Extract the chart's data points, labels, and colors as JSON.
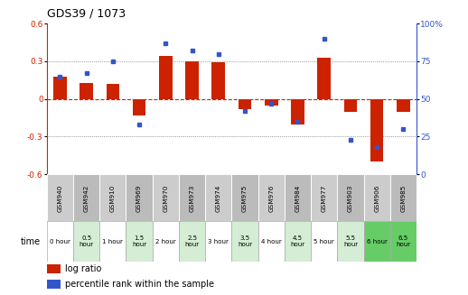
{
  "title": "GDS39 / 1073",
  "samples": [
    "GSM940",
    "GSM942",
    "GSM910",
    "GSM969",
    "GSM970",
    "GSM973",
    "GSM974",
    "GSM975",
    "GSM976",
    "GSM984",
    "GSM977",
    "GSM903",
    "GSM906",
    "GSM985"
  ],
  "time_labels": [
    "0 hour",
    "0.5\nhour",
    "1 hour",
    "1.5\nhour",
    "2 hour",
    "2.5\nhour",
    "3 hour",
    "3.5\nhour",
    "4 hour",
    "4.5\nhour",
    "5 hour",
    "5.5\nhour",
    "6 hour",
    "6.5\nhour"
  ],
  "log_ratio": [
    0.18,
    0.13,
    0.12,
    -0.13,
    0.34,
    0.3,
    0.29,
    -0.08,
    -0.05,
    -0.2,
    0.33,
    -0.1,
    -0.5,
    -0.1
  ],
  "percentile": [
    65,
    67,
    75,
    33,
    87,
    82,
    80,
    42,
    47,
    35,
    90,
    23,
    18,
    30
  ],
  "ylim_left": [
    -0.6,
    0.6
  ],
  "ylim_right": [
    0,
    100
  ],
  "bar_color": "#cc2200",
  "dot_color": "#3355cc",
  "bg_color_gray": "#bbbbbb",
  "time_row_colors": [
    "#ffffff",
    "#d4edd4",
    "#ffffff",
    "#d4edd4",
    "#ffffff",
    "#d4edd4",
    "#ffffff",
    "#d4edd4",
    "#ffffff",
    "#d4edd4",
    "#ffffff",
    "#d4edd4",
    "#66cc66",
    "#66cc66"
  ],
  "zero_line_color": "#cc2200",
  "grid_color": "#555555"
}
